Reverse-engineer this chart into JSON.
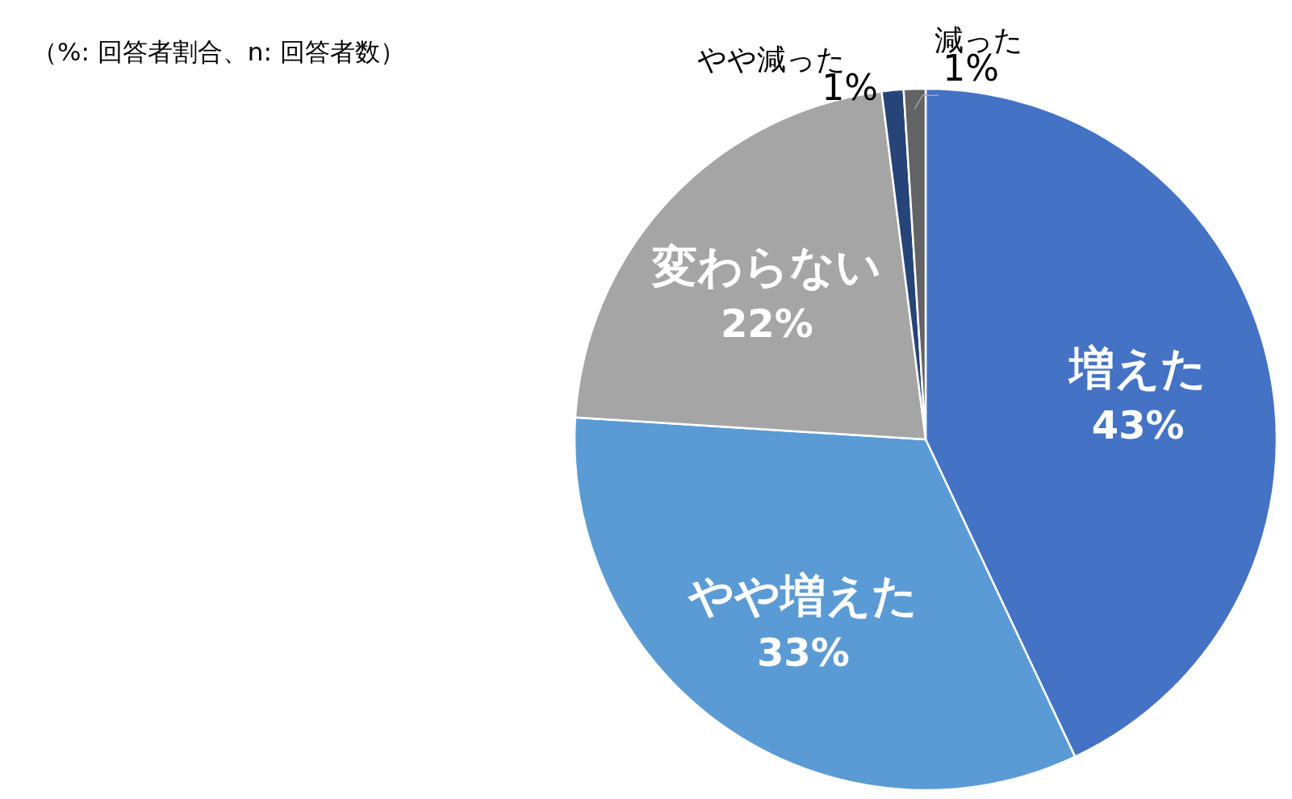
{
  "chart_data": {
    "type": "pie",
    "title": "（%: 回答者割合、n: 回答者数）",
    "categories": [
      "増えた",
      "やや増えた",
      "変わらない",
      "やや減った",
      "減った"
    ],
    "values": [
      43,
      33,
      22,
      1,
      1
    ],
    "colors": [
      "#4472c4",
      "#5b9bd5",
      "#a5a5a5",
      "#264478",
      "#636363"
    ],
    "value_labels": [
      "43%",
      "33%",
      "22%",
      "1%",
      "1%"
    ],
    "data_labels": true
  }
}
